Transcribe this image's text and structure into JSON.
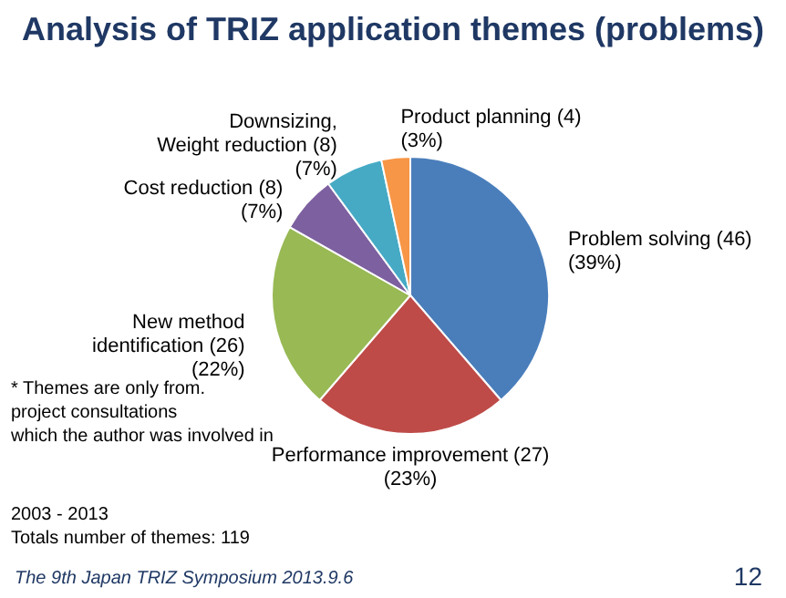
{
  "chart_data": {
    "type": "pie",
    "title": "Analysis of TRIZ application themes (problems)",
    "categories": [
      "Problem solving",
      "Performance improvement",
      "New method\nidentification",
      "Cost reduction",
      "Downsizing,\nWeight reduction",
      "Product planning"
    ],
    "values": [
      46,
      27,
      26,
      8,
      8,
      4
    ],
    "value_labels": [
      "(46)",
      "(27)",
      "(26)",
      "(8)",
      "(8)",
      "(4)"
    ],
    "colors": [
      "#4a7ebb",
      "#be4b48",
      "#98b954",
      "#7d60a0",
      "#46aac5",
      "#f79646"
    ],
    "annotations": [
      {
        "text": "(39%)",
        "x": "Problem solving"
      },
      {
        "text": "(23%)",
        "x": "Performance improvement"
      },
      {
        "text": "(22%)",
        "x": "New method\nidentification"
      },
      {
        "text": "(7%)",
        "x": "Cost reduction"
      },
      {
        "text": "(7%)",
        "x": "Downsizing,\nWeight reduction"
      },
      {
        "text": "(3%)",
        "x": "Product planning"
      },
      "* Themes are only from.\nproject consultations\nwhich the author was involved in",
      "2003 - 2013\nTotals number of themes: 119",
      "The 9th Japan TRIZ Symposium 2013.9.6",
      "12"
    ]
  }
}
